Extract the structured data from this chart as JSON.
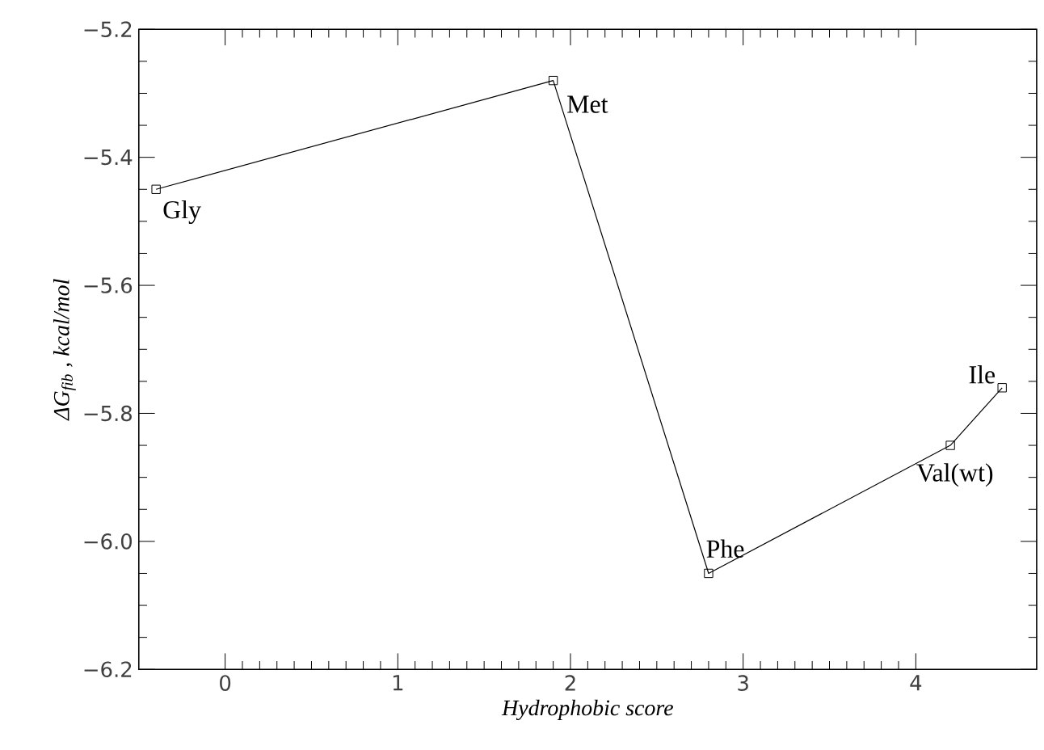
{
  "chart_data": {
    "type": "line",
    "xlabel": "Hydrophobic score",
    "ylabel": "ΔG$_{fib}$ , kcal/mol",
    "x": [
      -0.4,
      1.9,
      2.8,
      4.2,
      4.5
    ],
    "series": [
      {
        "color": "#000000",
        "values": [
          -5.45,
          -5.28,
          -6.05,
          -5.85,
          -5.76
        ]
      }
    ],
    "marker": "square",
    "line_style": "solid",
    "xlim": [
      -0.5,
      4.7
    ],
    "ylim": [
      -6.2,
      -5.2
    ],
    "xticks": [
      0,
      1,
      2,
      3,
      4
    ],
    "yticks": [
      {
        "value": -6.2,
        "label": "−6.2"
      },
      {
        "value": -6.0,
        "label": "−6.0"
      },
      {
        "value": -5.8,
        "label": "−5.8"
      },
      {
        "value": -5.6,
        "label": "−5.6"
      },
      {
        "value": -5.4,
        "label": "−5.4"
      },
      {
        "value": -5.2,
        "label": "−5.2"
      }
    ],
    "annotations": [
      {
        "text": "Gly",
        "x": -0.4,
        "y": -5.45
      },
      {
        "text": "Met",
        "x": 1.9,
        "y": -5.28
      },
      {
        "text": "Phe",
        "x": 2.8,
        "y": -6.05
      },
      {
        "text": "Val(wt)",
        "x": 4.2,
        "y": -5.85
      },
      {
        "text": "Ile",
        "x": 4.5,
        "y": -5.76
      }
    ]
  }
}
